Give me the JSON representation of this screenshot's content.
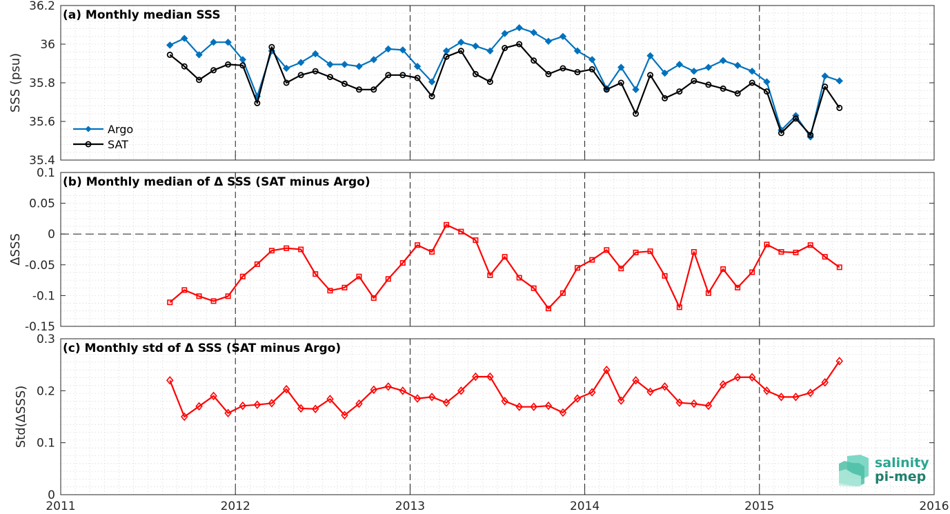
{
  "chart_data": [
    {
      "type": "line",
      "title": "(a) Monthly median SSS",
      "ylabel": "SSS (psu)",
      "ylim": [
        35.4,
        36.2
      ],
      "yticks": [
        "35.4",
        "35.6",
        "35.8",
        "36",
        "36.2"
      ],
      "xlim": [
        2011,
        2016
      ],
      "legend": "left",
      "grid": true,
      "series": [
        {
          "name": "Argo",
          "color": "#0072BD",
          "marker": "diamond",
          "x": [
            2011.625,
            2011.708,
            2011.792,
            2011.875,
            2011.958,
            2012.042,
            2012.125,
            2012.208,
            2012.292,
            2012.375,
            2012.458,
            2012.542,
            2012.625,
            2012.708,
            2012.792,
            2012.875,
            2012.958,
            2013.042,
            2013.125,
            2013.208,
            2013.292,
            2013.375,
            2013.458,
            2013.542,
            2013.625,
            2013.708,
            2013.792,
            2013.875,
            2013.958,
            2014.042,
            2014.125,
            2014.208,
            2014.292,
            2014.375,
            2014.458,
            2014.542,
            2014.625,
            2014.708,
            2014.792,
            2014.875,
            2014.958,
            2015.042,
            2015.125,
            2015.208,
            2015.292,
            2015.375,
            2015.458
          ],
          "values": [
            35.995,
            36.03,
            35.945,
            36.01,
            36.01,
            35.92,
            35.73,
            35.965,
            35.875,
            35.905,
            35.95,
            35.895,
            35.895,
            35.885,
            35.92,
            35.975,
            35.97,
            35.885,
            35.805,
            35.965,
            36.01,
            35.99,
            35.965,
            36.055,
            36.085,
            36.06,
            36.015,
            36.04,
            35.965,
            35.92,
            35.77,
            35.88,
            35.765,
            35.94,
            35.85,
            35.895,
            35.86,
            35.88,
            35.915,
            35.89,
            35.86,
            35.805,
            35.555,
            35.63,
            35.52,
            35.835,
            35.81
          ]
        },
        {
          "name": "SAT",
          "color": "#000000",
          "marker": "circle",
          "x": [
            2011.625,
            2011.708,
            2011.792,
            2011.875,
            2011.958,
            2012.042,
            2012.125,
            2012.208,
            2012.292,
            2012.375,
            2012.458,
            2012.542,
            2012.625,
            2012.708,
            2012.792,
            2012.875,
            2012.958,
            2013.042,
            2013.125,
            2013.208,
            2013.292,
            2013.375,
            2013.458,
            2013.542,
            2013.625,
            2013.708,
            2013.792,
            2013.875,
            2013.958,
            2014.042,
            2014.125,
            2014.208,
            2014.292,
            2014.375,
            2014.458,
            2014.542,
            2014.625,
            2014.708,
            2014.792,
            2014.875,
            2014.958,
            2015.042,
            2015.125,
            2015.208,
            2015.292,
            2015.375,
            2015.458
          ],
          "values": [
            35.945,
            35.885,
            35.815,
            35.865,
            35.895,
            35.89,
            35.695,
            35.985,
            35.8,
            35.84,
            35.86,
            35.83,
            35.795,
            35.765,
            35.765,
            35.84,
            35.84,
            35.825,
            35.73,
            35.935,
            35.965,
            35.845,
            35.805,
            35.98,
            36.0,
            35.915,
            35.845,
            35.875,
            35.855,
            35.87,
            35.765,
            35.8,
            35.64,
            35.84,
            35.72,
            35.755,
            35.81,
            35.79,
            35.77,
            35.745,
            35.8,
            35.755,
            35.54,
            35.615,
            35.53,
            35.78,
            35.67
          ]
        }
      ]
    },
    {
      "type": "line",
      "title": "(b) Monthly median of Δ SSS (SAT minus Argo)",
      "ylabel": "ΔSSS",
      "ylim": [
        -0.15,
        0.1
      ],
      "yticks": [
        "-0.15",
        "-0.1",
        "-0.05",
        "0",
        "0.05",
        "0.1"
      ],
      "xlim": [
        2011,
        2016
      ],
      "zero_line": true,
      "grid": true,
      "series": [
        {
          "color": "#FF0000",
          "marker": "square",
          "x": [
            2011.625,
            2011.708,
            2011.792,
            2011.875,
            2011.958,
            2012.042,
            2012.125,
            2012.208,
            2012.292,
            2012.375,
            2012.458,
            2012.542,
            2012.625,
            2012.708,
            2012.792,
            2012.875,
            2012.958,
            2013.042,
            2013.125,
            2013.208,
            2013.292,
            2013.375,
            2013.458,
            2013.542,
            2013.625,
            2013.708,
            2013.792,
            2013.875,
            2013.958,
            2014.042,
            2014.125,
            2014.208,
            2014.292,
            2014.375,
            2014.458,
            2014.542,
            2014.625,
            2014.708,
            2014.792,
            2014.875,
            2014.958,
            2015.042,
            2015.125,
            2015.208,
            2015.292,
            2015.375,
            2015.458
          ],
          "values": [
            -0.111,
            -0.091,
            -0.101,
            -0.109,
            -0.101,
            -0.069,
            -0.049,
            -0.027,
            -0.023,
            -0.025,
            -0.065,
            -0.092,
            -0.087,
            -0.069,
            -0.104,
            -0.073,
            -0.047,
            -0.018,
            -0.029,
            0.015,
            0.004,
            -0.01,
            -0.067,
            -0.037,
            -0.071,
            -0.088,
            -0.121,
            -0.096,
            -0.055,
            -0.042,
            -0.026,
            -0.056,
            -0.03,
            -0.028,
            -0.068,
            -0.119,
            -0.029,
            -0.096,
            -0.057,
            -0.087,
            -0.062,
            -0.017,
            -0.029,
            -0.03,
            -0.018,
            -0.037,
            -0.054
          ]
        }
      ]
    },
    {
      "type": "line",
      "title": "(c) Monthly std of Δ SSS (SAT minus Argo)",
      "ylabel": "Std(ΔSSS)",
      "ylim": [
        0,
        0.3
      ],
      "yticks": [
        "0",
        "0.1",
        "0.2",
        "0.3"
      ],
      "xlim": [
        2011,
        2016
      ],
      "xticks": [
        "2011",
        "2012",
        "2013",
        "2014",
        "2015",
        "2016"
      ],
      "grid": true,
      "series": [
        {
          "color": "#FF0000",
          "marker": "diamond-open",
          "x": [
            2011.625,
            2011.708,
            2011.792,
            2011.875,
            2011.958,
            2012.042,
            2012.125,
            2012.208,
            2012.292,
            2012.375,
            2012.458,
            2012.542,
            2012.625,
            2012.708,
            2012.792,
            2012.875,
            2012.958,
            2013.042,
            2013.125,
            2013.208,
            2013.292,
            2013.375,
            2013.458,
            2013.542,
            2013.625,
            2013.708,
            2013.792,
            2013.875,
            2013.958,
            2014.042,
            2014.125,
            2014.208,
            2014.292,
            2014.375,
            2014.458,
            2014.542,
            2014.625,
            2014.708,
            2014.792,
            2014.875,
            2014.958,
            2015.042,
            2015.125,
            2015.208,
            2015.292,
            2015.375,
            2015.458
          ],
          "values": [
            0.22,
            0.15,
            0.17,
            0.19,
            0.157,
            0.171,
            0.173,
            0.176,
            0.203,
            0.166,
            0.165,
            0.184,
            0.153,
            0.175,
            0.202,
            0.208,
            0.2,
            0.185,
            0.188,
            0.177,
            0.2,
            0.227,
            0.227,
            0.18,
            0.169,
            0.169,
            0.171,
            0.158,
            0.185,
            0.197,
            0.24,
            0.181,
            0.22,
            0.198,
            0.208,
            0.177,
            0.175,
            0.171,
            0.212,
            0.226,
            0.226,
            0.2,
            0.188,
            0.188,
            0.196,
            0.216,
            0.257
          ]
        }
      ]
    }
  ],
  "logo": {
    "line1": "salinity",
    "line2": "pi-mep",
    "colors": [
      "#2aa58f",
      "#1f7f6c",
      "#7fd8c6"
    ]
  }
}
